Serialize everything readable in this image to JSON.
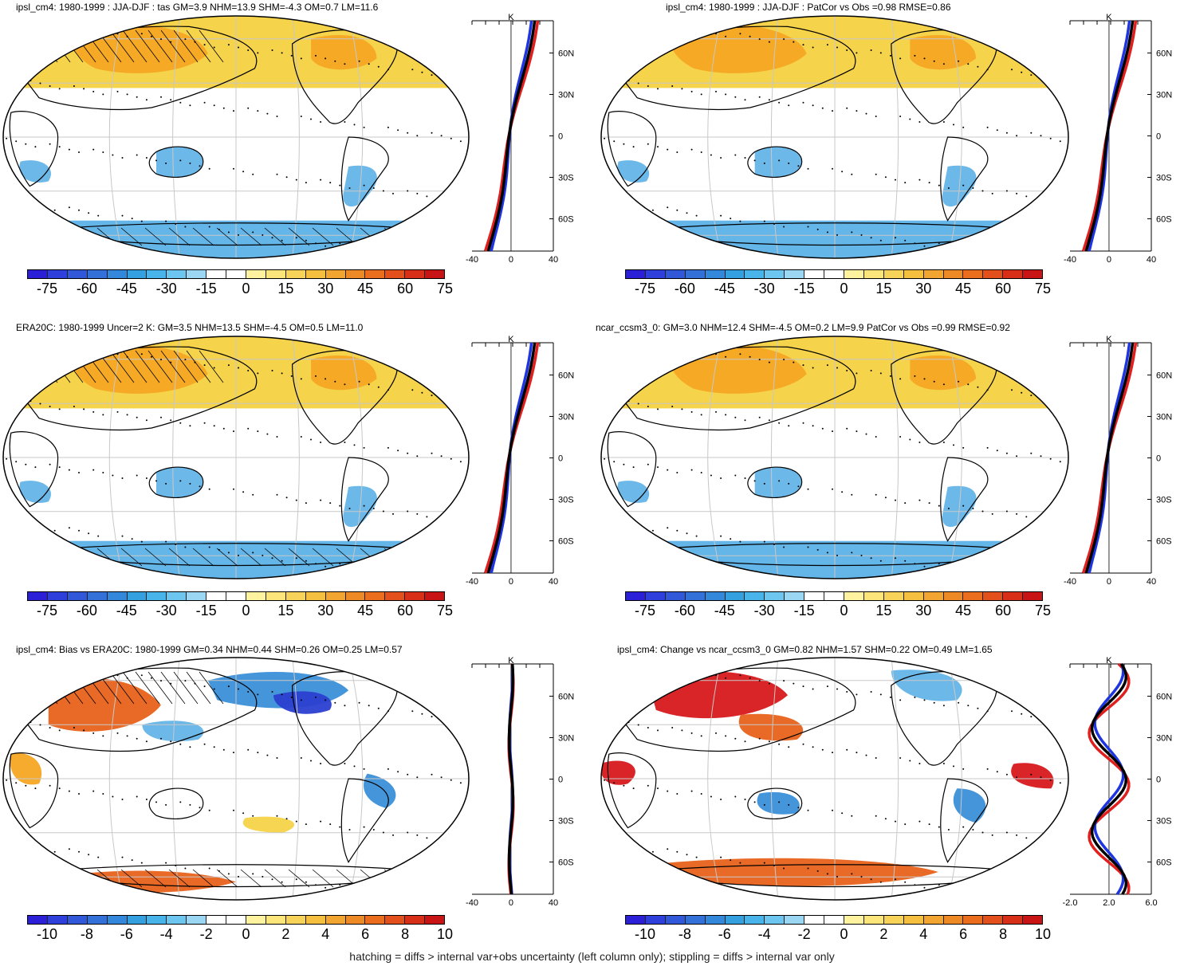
{
  "colors": {
    "ocean": "#ffffff",
    "warm_light": "#f5d34a",
    "warm_mid": "#f5a623",
    "warm_dark": "#e8621a",
    "hot": "#d7191c",
    "cool_light": "#64b5e8",
    "cool_mid": "#3a8fd8",
    "cool_dark": "#2b3fd0",
    "line_black": "#000000",
    "line_blue": "#1f35e0",
    "line_red": "#e01f1f",
    "grid": "#c8c8c8"
  },
  "colorbar_main": {
    "colors": [
      "#2b1fd8",
      "#2f3fdc",
      "#3158d8",
      "#3370d8",
      "#3488dc",
      "#35a0e0",
      "#48b4ea",
      "#6cc6f0",
      "#9bd7f2",
      "#ffffff",
      "#ffffff",
      "#fff3a0",
      "#fce57a",
      "#f8d35a",
      "#f5c040",
      "#f2a530",
      "#ee8a25",
      "#ea6e1e",
      "#e3501b",
      "#d83018",
      "#c81414"
    ],
    "labels": [
      "-75",
      "-60",
      "-45",
      "-30",
      "-15",
      "0",
      "15",
      "30",
      "45",
      "60",
      "75"
    ]
  },
  "colorbar_diff": {
    "colors": [
      "#2b1fd8",
      "#2f3fdc",
      "#3158d8",
      "#3370d8",
      "#3488dc",
      "#35a0e0",
      "#48b4ea",
      "#6cc6f0",
      "#9bd7f2",
      "#ffffff",
      "#ffffff",
      "#fff3a0",
      "#fce57a",
      "#f8d35a",
      "#f5c040",
      "#f2a530",
      "#ee8a25",
      "#ea6e1e",
      "#e3501b",
      "#d83018",
      "#c81414"
    ],
    "labels": [
      "-10",
      "-8",
      "-6",
      "-4",
      "-2",
      "0",
      "2",
      "4",
      "6",
      "8",
      "10"
    ]
  },
  "panels": [
    {
      "id": "p1",
      "title": "ipsl_cm4: 1980-1999 : JJA-DJF : tas GM=3.9 NHM=13.9 SHM=-4.3 OM=0.7 LM=11.6",
      "scale": "main",
      "profile_unit": "K",
      "x_ticks": [
        "-40",
        "0",
        "40"
      ],
      "lat_ticks": [
        "60N",
        "30N",
        "0",
        "30S",
        "60S"
      ]
    },
    {
      "id": "p2",
      "title": "ipsl_cm4: 1980-1999 : JJA-DJF : PatCor vs Obs =0.98 RMSE=0.86",
      "scale": "main",
      "profile_unit": "K",
      "x_ticks": [
        "-40",
        "0",
        "40"
      ],
      "lat_ticks": [
        "60N",
        "30N",
        "0",
        "30S",
        "60S"
      ]
    },
    {
      "id": "p3",
      "title": "ERA20C: 1980-1999 Uncer=2 K: GM=3.5 NHM=13.5 SHM=-4.5 OM=0.5 LM=11.0",
      "scale": "main",
      "profile_unit": "K",
      "x_ticks": [
        "-40",
        "0",
        "40"
      ],
      "lat_ticks": [
        "60N",
        "30N",
        "0",
        "30S",
        "60S"
      ]
    },
    {
      "id": "p4",
      "title": "ncar_ccsm3_0: GM=3.0 NHM=12.4 SHM=-4.5 OM=0.2 LM=9.9 PatCor vs Obs =0.99 RMSE=0.92",
      "scale": "main",
      "profile_unit": "K",
      "x_ticks": [
        "-40",
        "0",
        "40"
      ],
      "lat_ticks": [
        "60N",
        "30N",
        "0",
        "30S",
        "60S"
      ]
    },
    {
      "id": "p5",
      "title": "ipsl_cm4: Bias vs ERA20C: 1980-1999 GM=0.34 NHM=0.44 SHM=0.26 OM=0.25 LM=0.57",
      "scale": "diff",
      "profile_unit": "K",
      "x_ticks": [
        "-40",
        "0",
        "40"
      ],
      "lat_ticks": [
        "60N",
        "30N",
        "0",
        "30S",
        "60S"
      ]
    },
    {
      "id": "p6",
      "title": "ipsl_cm4: Change vs ncar_ccsm3_0 GM=0.82 NHM=1.57 SHM=0.22 OM=0.49 LM=1.65",
      "scale": "diff",
      "profile_unit": "K",
      "x_ticks": [
        "-2.0",
        "2.0",
        "6.0"
      ],
      "lat_ticks": [
        "60N",
        "30N",
        "0",
        "30S",
        "60S"
      ]
    }
  ],
  "footer": "hatching = diffs > internal var+obs uncertainty (left column only); stippling = diffs > internal var only"
}
